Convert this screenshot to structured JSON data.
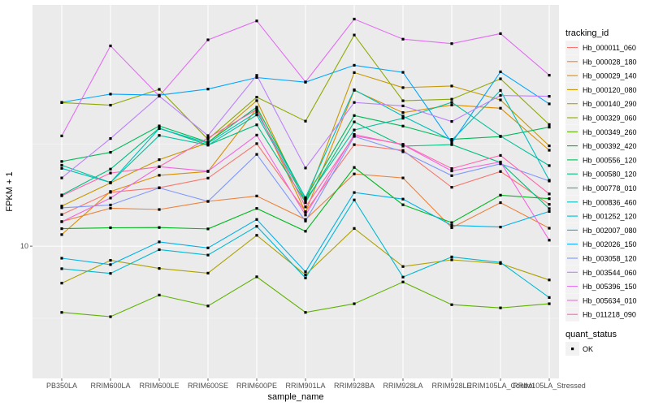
{
  "chart_data": {
    "type": "line",
    "xlabel": "sample_name",
    "ylabel": "FPKM + 1",
    "log_y": true,
    "ylim": [
      6.3,
      24.5
    ],
    "y_ticks": [
      {
        "value": 10,
        "label": "10"
      }
    ],
    "grid": true,
    "legend_position": "right",
    "categories": [
      "PB350LA",
      "RRIM600LA",
      "RRIM600LE",
      "RRIM600SE",
      "RRIM600PE",
      "RRIM901LA",
      "RRIM928BA",
      "RRIM928LA",
      "RRIM928LE",
      "RRIM105LA_Control",
      "RRIM105LA_Stressed"
    ],
    "series": [
      {
        "name": "Hb_000011_060",
        "color": "#F8766D",
        "values": [
          11.34,
          12.39,
          12.62,
          13.11,
          15.04,
          11.47,
          14.98,
          14.64,
          12.64,
          13.46,
          11.81
        ]
      },
      {
        "name": "Hb_000028_180",
        "color": "#EC823C",
        "values": [
          11.03,
          11.63,
          11.57,
          11.95,
          12.21,
          11.12,
          13.33,
          13.12,
          10.76,
          11.89,
          10.74
        ]
      },
      {
        "name": "Hb_000029_140",
        "color": "#DB8E00",
        "values": [
          10.47,
          12.43,
          13.26,
          13.46,
          17.29,
          11.45,
          18.6,
          17.02,
          17.54,
          17.32,
          14.65
        ]
      },
      {
        "name": "Hb_000120_080",
        "color": "#C79800",
        "values": [
          11.73,
          12.86,
          14.11,
          15.09,
          17.85,
          11.89,
          19.96,
          18.8,
          18.92,
          17.9,
          14.91
        ]
      },
      {
        "name": "Hb_000140_290",
        "color": "#AEA200",
        "values": [
          8.63,
          9.45,
          9.15,
          8.98,
          10.44,
          8.92,
          10.73,
          9.22,
          9.47,
          9.33,
          8.74
        ]
      },
      {
        "name": "Hb_000329_060",
        "color": "#8DAA00",
        "values": [
          17.71,
          17.53,
          18.67,
          15.3,
          18.1,
          16.45,
          23.18,
          17.84,
          17.95,
          19.47,
          16.23
        ]
      },
      {
        "name": "Hb_000349_260",
        "color": "#5DB300",
        "values": [
          7.68,
          7.55,
          8.23,
          7.88,
          8.85,
          7.68,
          7.95,
          8.67,
          7.92,
          7.82,
          7.95
        ]
      },
      {
        "name": "Hb_000392_420",
        "color": "#00B81F",
        "values": [
          10.72,
          10.76,
          10.77,
          10.71,
          11.62,
          10.61,
          13.68,
          11.79,
          10.98,
          12.25,
          12.08
        ]
      },
      {
        "name": "Hb_000556_120",
        "color": "#00BC59",
        "values": [
          14.01,
          14.53,
          16.14,
          15.13,
          17.39,
          12.1,
          16.82,
          16.13,
          15.3,
          15.47,
          16.06
        ]
      },
      {
        "name": "Hb_000580_120",
        "color": "#00BF7D",
        "values": [
          12.26,
          13.59,
          16.0,
          14.96,
          16.21,
          11.91,
          16.4,
          14.89,
          14.98,
          13.95,
          11.61
        ]
      },
      {
        "name": "Hb_000778_010",
        "color": "#00C19C",
        "values": [
          13.8,
          12.88,
          15.54,
          14.95,
          16.86,
          12.01,
          15.88,
          16.64,
          17.73,
          15.5,
          13.78
        ]
      },
      {
        "name": "Hb_000836_460",
        "color": "#00BFB9",
        "values": [
          13.63,
          12.88,
          15.97,
          15.07,
          17.05,
          12.13,
          18.64,
          16.78,
          15.24,
          18.59,
          13.0
        ]
      },
      {
        "name": "Hb_001252_120",
        "color": "#00BAD3",
        "values": [
          9.14,
          8.97,
          9.86,
          9.65,
          10.82,
          8.81,
          12.02,
          8.84,
          9.58,
          9.37,
          8.15
        ]
      },
      {
        "name": "Hb_002007_080",
        "color": "#00B2E9",
        "values": [
          9.53,
          9.29,
          10.17,
          9.93,
          11.12,
          9.03,
          12.38,
          12.06,
          10.86,
          10.79,
          11.48
        ]
      },
      {
        "name": "Hb_002026_150",
        "color": "#00A5FF",
        "values": [
          17.73,
          18.32,
          18.24,
          18.69,
          19.57,
          19.21,
          20.55,
          19.98,
          15.09,
          20.02,
          17.62
        ]
      },
      {
        "name": "Hb_003058_120",
        "color": "#7F96FF",
        "values": [
          11.65,
          11.78,
          12.61,
          11.95,
          14.41,
          11.05,
          15.48,
          14.56,
          13.24,
          13.88,
          12.96
        ]
      },
      {
        "name": "Hb_003544_060",
        "color": "#BC81FF",
        "values": [
          13.12,
          15.35,
          18.17,
          15.53,
          19.74,
          13.65,
          17.72,
          17.48,
          16.43,
          18.22,
          18.16
        ]
      },
      {
        "name": "Hb_005396_150",
        "color": "#E16FF2",
        "values": [
          15.51,
          22.2,
          18.18,
          22.74,
          24.52,
          19.23,
          24.7,
          22.8,
          22.4,
          23.31,
          19.75
        ]
      },
      {
        "name": "Hb_005634_010",
        "color": "#F564E3",
        "values": [
          11.02,
          12.11,
          13.72,
          13.48,
          15.56,
          11.32,
          15.6,
          14.97,
          13.49,
          13.98,
          10.24
        ]
      },
      {
        "name": "Hb_011218_090",
        "color": "#FF64B0",
        "values": [
          12.22,
          13.38,
          13.72,
          15.39,
          17.23,
          11.69,
          15.52,
          15.0,
          13.62,
          14.35,
          12.31
        ]
      }
    ],
    "legend": {
      "title": "tracking_id",
      "shape_title": "quant_status",
      "shape_label": "OK"
    }
  }
}
